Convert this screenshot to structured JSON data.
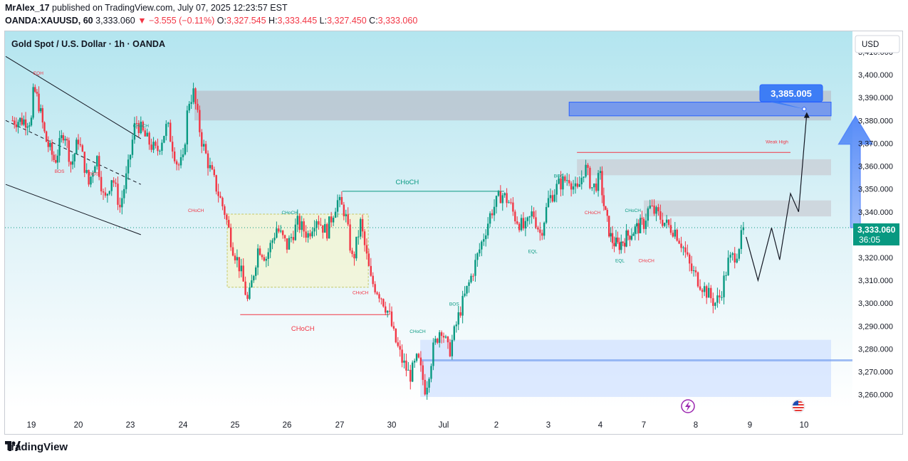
{
  "header": {
    "author": "MrAlex_17",
    "published_text": "published on TradingView.com, July 07, 2025 12:23:57 EST",
    "symbol": "OANDA:XAUUSD, 60",
    "last": "3,333.060",
    "change": "▼ −3.555 (−0.11%)",
    "o_label": "O:",
    "o_value": "3,327.545",
    "h_label": "H:",
    "h_value": "3,333.445",
    "l_label": "L:",
    "l_value": "3,327.450",
    "c_label": "C:",
    "c_value": "3,333.060"
  },
  "chart_title": "Gold Spot / U.S. Dollar · 1h · OANDA",
  "currency_button": "USD",
  "price_tag": {
    "value": "3,333.060",
    "countdown": "36:05"
  },
  "target_label": "3,385.005",
  "footer_brand": "TradingView",
  "colors": {
    "up": "#089981",
    "down": "#f23645",
    "accent": "#2962ff",
    "target": "#4f86f7"
  },
  "chart_data": {
    "type": "candlestick",
    "title": "Gold Spot / U.S. Dollar · 1h · OANDA",
    "y_axis": {
      "ticks": [
        3260,
        3270,
        3280,
        3290,
        3300,
        3310,
        3320,
        3330,
        3340,
        3350,
        3360,
        3370,
        3380,
        3390,
        3400,
        3410
      ],
      "tick_labels": [
        "3,260.000",
        "3,270.000",
        "3,280.000",
        "3,290.000",
        "3,300.000",
        "3,310.000",
        "3,320.000",
        "3,330.000",
        "3,340.000",
        "3,350.000",
        "3,360.000",
        "3,370.000",
        "3,380.000",
        "3,390.000",
        "3,400.000",
        "3,410.000"
      ],
      "range": [
        3254,
        3419
      ]
    },
    "x_axis": {
      "tick_labels": [
        "19",
        "20",
        "23",
        "24",
        "25",
        "26",
        "27",
        "30",
        "Jul",
        "2",
        "3",
        "4",
        "7",
        "8",
        "9",
        "10"
      ],
      "tick_index": [
        0,
        1,
        2,
        3,
        4,
        5,
        6,
        7,
        8,
        9,
        10,
        11,
        12,
        13,
        14,
        15
      ],
      "range": [
        -0.5,
        15.5
      ]
    },
    "price_path": [
      [
        0.0,
        3380
      ],
      [
        0.05,
        3394
      ],
      [
        0.15,
        3388
      ],
      [
        0.3,
        3372
      ],
      [
        0.5,
        3362
      ],
      [
        0.7,
        3376
      ],
      [
        0.85,
        3360
      ],
      [
        1.0,
        3372
      ],
      [
        1.2,
        3352
      ],
      [
        1.35,
        3365
      ],
      [
        1.5,
        3344
      ],
      [
        1.65,
        3356
      ],
      [
        1.8,
        3342
      ],
      [
        1.95,
        3358
      ],
      [
        2.1,
        3380
      ],
      [
        2.3,
        3372
      ],
      [
        2.5,
        3366
      ],
      [
        2.7,
        3378
      ],
      [
        2.9,
        3360
      ],
      [
        3.0,
        3362
      ],
      [
        3.1,
        3388
      ],
      [
        3.2,
        3392
      ],
      [
        3.35,
        3372
      ],
      [
        3.5,
        3360
      ],
      [
        3.65,
        3350
      ],
      [
        3.8,
        3340
      ],
      [
        3.95,
        3325
      ],
      [
        4.1,
        3315
      ],
      [
        4.25,
        3300
      ],
      [
        4.45,
        3325
      ],
      [
        4.6,
        3320
      ],
      [
        4.8,
        3333
      ],
      [
        5.0,
        3325
      ],
      [
        5.2,
        3335
      ],
      [
        5.4,
        3330
      ],
      [
        5.55,
        3338
      ],
      [
        5.75,
        3331
      ],
      [
        5.95,
        3345
      ],
      [
        6.1,
        3340
      ],
      [
        6.25,
        3318
      ],
      [
        6.4,
        3335
      ],
      [
        6.6,
        3310
      ],
      [
        6.8,
        3303
      ],
      [
        6.95,
        3295
      ],
      [
        7.05,
        3285
      ],
      [
        7.2,
        3275
      ],
      [
        7.35,
        3268
      ],
      [
        7.5,
        3276
      ],
      [
        7.65,
        3262
      ],
      [
        7.8,
        3280
      ],
      [
        7.95,
        3290
      ],
      [
        8.1,
        3278
      ],
      [
        8.3,
        3296
      ],
      [
        8.5,
        3310
      ],
      [
        8.7,
        3325
      ],
      [
        8.9,
        3340
      ],
      [
        9.1,
        3348
      ],
      [
        9.25,
        3344
      ],
      [
        9.35,
        3338
      ],
      [
        9.55,
        3332
      ],
      [
        9.7,
        3340
      ],
      [
        9.85,
        3330
      ],
      [
        10.0,
        3345
      ],
      [
        10.2,
        3352
      ],
      [
        10.4,
        3355
      ],
      [
        10.55,
        3348
      ],
      [
        10.7,
        3360
      ],
      [
        10.85,
        3350
      ],
      [
        11.0,
        3355
      ],
      [
        11.1,
        3340
      ],
      [
        11.25,
        3328
      ],
      [
        11.4,
        3325
      ],
      [
        11.55,
        3328
      ],
      [
        11.7,
        3331
      ],
      [
        11.85,
        3333
      ],
      [
        12.0,
        3335
      ],
      [
        12.1,
        3342
      ],
      [
        12.3,
        3338
      ],
      [
        12.45,
        3334
      ],
      [
        12.6,
        3332
      ],
      [
        12.75,
        3325
      ],
      [
        12.9,
        3315
      ],
      [
        13.05,
        3310
      ],
      [
        13.2,
        3305
      ],
      [
        13.35,
        3300
      ],
      [
        13.45,
        3303
      ],
      [
        13.6,
        3318
      ],
      [
        13.75,
        3322
      ],
      [
        13.9,
        3333
      ]
    ],
    "projection_path": [
      [
        13.93,
        3329
      ],
      [
        14.15,
        3310
      ],
      [
        14.4,
        3333
      ],
      [
        14.55,
        3319
      ],
      [
        14.75,
        3348
      ],
      [
        14.9,
        3340
      ],
      [
        15.05,
        3383
      ]
    ],
    "zones": [
      {
        "type": "supply",
        "x": [
          3.22,
          15.5
        ],
        "y": [
          3380,
          3393
        ],
        "color": "#b9bec9"
      },
      {
        "type": "target",
        "x": [
          10.4,
          15.5
        ],
        "y": [
          3382,
          3388
        ],
        "color": "#6f95ee"
      },
      {
        "type": "supply",
        "x": [
          10.55,
          15.5
        ],
        "y": [
          3356,
          3363
        ],
        "color": "#c9ccd3"
      },
      {
        "type": "supply",
        "x": [
          12.0,
          15.5
        ],
        "y": [
          3338,
          3345
        ],
        "color": "#c9ccd3"
      },
      {
        "type": "demand",
        "x": [
          7.55,
          15.5
        ],
        "y": [
          3259,
          3284
        ],
        "color": "#cfe0ff"
      },
      {
        "type": "consolidation",
        "x": [
          3.85,
          6.55
        ],
        "y": [
          3307,
          3339
        ],
        "color": "#f2f5d6"
      }
    ],
    "annotations": [
      {
        "text": "EQH",
        "x": 0.15,
        "y": 3400,
        "color": "#f23645"
      },
      {
        "text": "BOS",
        "x": 0.6,
        "y": 3357,
        "color": "#f23645"
      },
      {
        "text": "BOS",
        "x": 1.3,
        "y": 3356,
        "color": "#f23645"
      },
      {
        "text": "CHoCH",
        "x": 2.2,
        "y": 3377,
        "color": "#089981"
      },
      {
        "text": "CHoCH",
        "x": 3.25,
        "y": 3340,
        "color": "#f23645"
      },
      {
        "text": "CHoCH",
        "x": 5.05,
        "y": 3339,
        "color": "#089981"
      },
      {
        "text": "CHoCH",
        "x": 7.5,
        "y": 3359,
        "color": "#089981"
      },
      {
        "text": "CHoCH",
        "x": 6.4,
        "y": 3304,
        "color": "#f23645"
      },
      {
        "text": "CHoCH",
        "x": 5.3,
        "y": 3290,
        "color": "#f23645"
      },
      {
        "text": "CHoCH",
        "x": 7.5,
        "y": 3287,
        "color": "#089981"
      },
      {
        "text": "BOS",
        "x": 8.2,
        "y": 3299,
        "color": "#089981"
      },
      {
        "text": "BOS",
        "x": 10.2,
        "y": 3355,
        "color": "#089981"
      },
      {
        "text": "CHoCH",
        "x": 10.85,
        "y": 3339,
        "color": "#f23645"
      },
      {
        "text": "EQL",
        "x": 9.7,
        "y": 3322,
        "color": "#089981"
      },
      {
        "text": "EQL",
        "x": 11.45,
        "y": 3318,
        "color": "#089981"
      },
      {
        "text": "CHoCH",
        "x": 11.75,
        "y": 3340,
        "color": "#089981"
      },
      {
        "text": "CHoCH",
        "x": 12.05,
        "y": 3318,
        "color": "#f23645"
      },
      {
        "text": "Weak High",
        "x": 14.5,
        "y": 3370,
        "color": "#f23645"
      }
    ],
    "level_lines": [
      {
        "x": [
          10.55,
          14.75
        ],
        "y": 3366,
        "color": "#f23645"
      },
      {
        "x": [
          6.05,
          9.15
        ],
        "y": 3349,
        "color": "#089981"
      },
      {
        "x": [
          4.1,
          6.95
        ],
        "y": 3295,
        "color": "#f23645"
      }
    ],
    "channel": {
      "upper": [
        [
          0,
          3408
        ],
        [
          2.2,
          3372
        ]
      ],
      "lower": [
        [
          0,
          3352
        ],
        [
          2.2,
          3330
        ]
      ],
      "mid": [
        [
          0,
          3380
        ],
        [
          2.2,
          3352
        ]
      ]
    },
    "current_price": 3333.06,
    "target_price": 3385.005
  }
}
